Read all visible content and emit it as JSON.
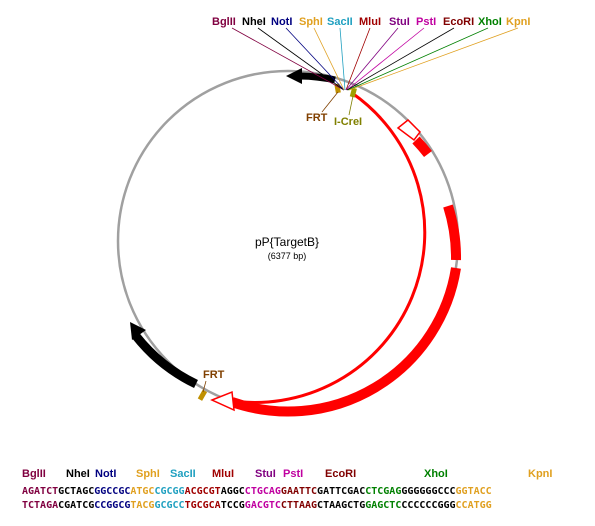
{
  "plasmid": {
    "name": "pP{TargetB}",
    "size_label": "(6377 bp)"
  },
  "sites": [
    {
      "name": "BglII",
      "color": "#800040"
    },
    {
      "name": "NheI",
      "color": "#000000"
    },
    {
      "name": "NotI",
      "color": "#000080"
    },
    {
      "name": "SphI",
      "color": "#e0a020"
    },
    {
      "name": "SacII",
      "color": "#20a0c0"
    },
    {
      "name": "MluI",
      "color": "#a00000"
    },
    {
      "name": "StuI",
      "color": "#800080"
    },
    {
      "name": "PstI",
      "color": "#c000a0"
    },
    {
      "name": "EcoRI",
      "color": "#800000"
    },
    {
      "name": "XhoI",
      "color": "#008000"
    },
    {
      "name": "KpnI",
      "color": "#e0a020"
    }
  ],
  "features": {
    "frt_top": {
      "label": "FRT",
      "color": "#804000"
    },
    "icrel": {
      "label": "I-CreI",
      "color": "#808000"
    },
    "frt_bottom": {
      "label": "FRT",
      "color": "#804000"
    }
  },
  "sequence": {
    "labels": [
      {
        "name": "BglII",
        "color": "#800040"
      },
      {
        "name": "NheI",
        "color": "#000000"
      },
      {
        "name": "NotI",
        "color": "#000080"
      },
      {
        "name": "SphI",
        "color": "#e0a020"
      },
      {
        "name": "SacII",
        "color": "#20a0c0"
      },
      {
        "name": "MluI",
        "color": "#a00000"
      },
      {
        "name": "StuI",
        "color": "#800080"
      },
      {
        "name": "PstI",
        "color": "#c000a0"
      },
      {
        "name": "EcoRI",
        "color": "#800000"
      },
      {
        "name": "XhoI",
        "color": "#008000"
      },
      {
        "name": "KpnI",
        "color": "#e0a020"
      }
    ],
    "top": [
      {
        "t": "AGATCT",
        "c": "#800040"
      },
      {
        "t": "GCTAGC",
        "c": "#000000"
      },
      {
        "t": "GGCCGC",
        "c": "#000080"
      },
      {
        "t": "ATGC",
        "c": "#e0a020"
      },
      {
        "t": "CGCGG",
        "c": "#20a0c0"
      },
      {
        "t": "ACGCGT",
        "c": "#a00000"
      },
      {
        "t": "AGGC",
        "c": "#000000"
      },
      {
        "t": "CTGCAG",
        "c": "#c000a0"
      },
      {
        "t": "GAATTC",
        "c": "#800000"
      },
      {
        "t": "GATTCGAC",
        "c": "#000000"
      },
      {
        "t": "CTCGAG",
        "c": "#008000"
      },
      {
        "t": "GGGGGGCCC",
        "c": "#000000"
      },
      {
        "t": "GGTACC",
        "c": "#e0a020"
      }
    ],
    "bottom": [
      {
        "t": "TCTAGA",
        "c": "#800040"
      },
      {
        "t": "CGATCG",
        "c": "#000000"
      },
      {
        "t": "CCGGCG",
        "c": "#000080"
      },
      {
        "t": "TACG",
        "c": "#e0a020"
      },
      {
        "t": "GCGCC",
        "c": "#20a0c0"
      },
      {
        "t": "TGCGCA",
        "c": "#a00000"
      },
      {
        "t": "TCCG",
        "c": "#000000"
      },
      {
        "t": "GACGTC",
        "c": "#c000a0"
      },
      {
        "t": "CTTAAG",
        "c": "#800000"
      },
      {
        "t": "CTAAGCTG",
        "c": "#000000"
      },
      {
        "t": "GAGCTC",
        "c": "#008000"
      },
      {
        "t": "CCCCCCGGG",
        "c": "#000000"
      },
      {
        "t": "CCATGG",
        "c": "#e0a020"
      }
    ]
  }
}
